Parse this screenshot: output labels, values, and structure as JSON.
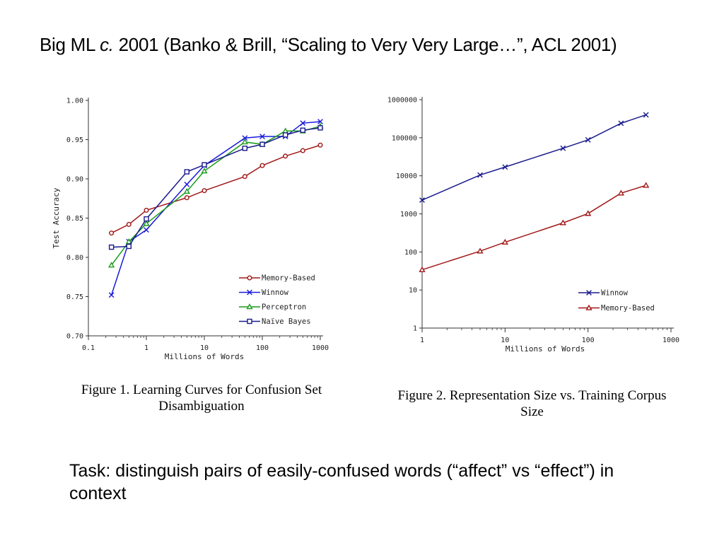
{
  "slide": {
    "title": "Big ML c. 2001 (Banko & Brill, “Scaling to Very Very Large…”, ACL 2001)",
    "title_pre": "Big ML ",
    "title_italic": "c.",
    "title_post": " 2001 (Banko & Brill, “Scaling to Very Very Large…”, ACL 2001)",
    "task_text": "Task: distinguish pairs of easily-confused words (“affect” vs “effect”) in context"
  },
  "chart_data": [
    {
      "type": "line",
      "caption": "Figure 1. Learning Curves for Confusion Set Disambiguation",
      "xlabel": "Millions of Words",
      "ylabel": "Test Accuracy",
      "x_scale": "log",
      "xlim": [
        0.1,
        1000
      ],
      "ylim": [
        0.7,
        1.0
      ],
      "x_ticks": [
        0.1,
        1,
        10,
        100,
        1000
      ],
      "x_tick_labels": [
        "0.1",
        "1",
        "10",
        "100",
        "1000"
      ],
      "y_ticks": [
        0.7,
        0.75,
        0.8,
        0.85,
        0.9,
        0.95,
        1.0
      ],
      "y_tick_labels": [
        "0.70",
        "0.75",
        "0.80",
        "0.85",
        "0.90",
        "0.95",
        "1.00"
      ],
      "legend_position": "lower-right",
      "series": [
        {
          "name": "Memory-Based",
          "color": "#a01818",
          "marker": "circle",
          "x": [
            0.25,
            0.5,
            1,
            5,
            10,
            50,
            100,
            250,
            500,
            1000
          ],
          "y": [
            0.831,
            0.842,
            0.86,
            0.876,
            0.885,
            0.903,
            0.917,
            0.929,
            0.936,
            0.943
          ]
        },
        {
          "name": "Winnow",
          "color": "#1a1adc",
          "marker": "x",
          "x": [
            0.25,
            0.5,
            1,
            5,
            10,
            50,
            100,
            250,
            500,
            1000
          ],
          "y": [
            0.752,
            0.82,
            0.835,
            0.893,
            0.917,
            0.952,
            0.954,
            0.954,
            0.971,
            0.973
          ]
        },
        {
          "name": "Perceptron",
          "color": "#1a9c1a",
          "marker": "triangle",
          "x": [
            0.25,
            0.5,
            1,
            5,
            10,
            50,
            100,
            250,
            500,
            1000
          ],
          "y": [
            0.79,
            0.82,
            0.843,
            0.884,
            0.91,
            0.947,
            0.944,
            0.961,
            0.961,
            0.967
          ]
        },
        {
          "name": "Naïve Bayes",
          "color": "#1a1a8c",
          "marker": "square",
          "x": [
            0.25,
            0.5,
            1,
            5,
            10,
            50,
            100,
            250,
            500,
            1000
          ],
          "y": [
            0.813,
            0.814,
            0.849,
            0.909,
            0.918,
            0.939,
            0.944,
            0.956,
            0.962,
            0.965
          ]
        }
      ]
    },
    {
      "type": "line",
      "caption": "Figure 2. Representation Size vs. Training Corpus Size",
      "xlabel": "Millions of Words",
      "ylabel": "",
      "x_scale": "log",
      "y_scale": "log",
      "xlim": [
        1,
        1000
      ],
      "ylim": [
        1,
        1000000
      ],
      "x_ticks": [
        1,
        10,
        100,
        1000
      ],
      "x_tick_labels": [
        "1",
        "10",
        "100",
        "1000"
      ],
      "y_ticks": [
        1,
        10,
        100,
        1000,
        10000,
        100000,
        1000000
      ],
      "y_tick_labels": [
        "1",
        "10",
        "100",
        "1000",
        "10000",
        "100000",
        "1000000"
      ],
      "legend_position": "lower-right",
      "series": [
        {
          "name": "Winnow",
          "color": "#1a1a8c",
          "marker": "x",
          "x": [
            1,
            5,
            10,
            50,
            100,
            250,
            500
          ],
          "y": [
            2300,
            10500,
            17000,
            53000,
            88000,
            240000,
            400000
          ]
        },
        {
          "name": "Memory-Based",
          "color": "#a01818",
          "marker": "triangle",
          "x": [
            1,
            5,
            10,
            50,
            100,
            250,
            500
          ],
          "y": [
            34,
            105,
            180,
            580,
            1020,
            3500,
            5600
          ]
        }
      ]
    }
  ]
}
